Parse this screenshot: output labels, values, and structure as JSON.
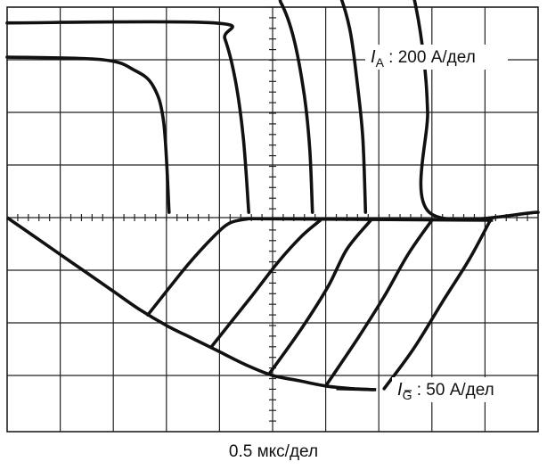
{
  "chart_data": {
    "type": "line",
    "title": "",
    "xlabel": "0.5 мкс/дел",
    "ylabel": "",
    "grid": true,
    "grid_divisions": {
      "x": 10,
      "y": 8
    },
    "annotations": [
      {
        "id": "ia",
        "symbol": "I",
        "subscript": "A",
        "text": ": 200 А/дел"
      },
      {
        "id": "ig",
        "symbol": "I",
        "subscript": "G",
        "overbar": true,
        "text": ": 50 А/дел"
      }
    ],
    "anode_current_series": [
      {
        "values_div": [
          [
            0.0,
            5.25
          ],
          [
            7.05,
            5.25
          ],
          [
            7.25,
            5.15
          ],
          [
            7.5,
            4.75
          ],
          [
            7.7,
            4.0
          ],
          [
            7.85,
            3.0
          ],
          [
            7.92,
            2.0
          ],
          [
            7.95,
            0.1
          ],
          [
            10.0,
            0.1
          ]
        ]
      },
      {
        "values_div": [
          [
            0.0,
            4.65
          ],
          [
            6.0,
            4.65
          ],
          [
            6.2,
            4.4
          ],
          [
            6.45,
            3.6
          ],
          [
            6.6,
            2.5
          ],
          [
            6.7,
            1.5
          ],
          [
            6.75,
            0.1
          ]
        ]
      },
      {
        "values_div": [
          [
            0.0,
            4.35
          ],
          [
            4.9,
            4.35
          ],
          [
            5.15,
            4.1
          ],
          [
            5.4,
            3.4
          ],
          [
            5.6,
            2.3
          ],
          [
            5.7,
            1.3
          ],
          [
            5.75,
            0.1
          ]
        ]
      },
      {
        "values_div": [
          [
            0.0,
            3.7
          ],
          [
            3.9,
            3.7
          ],
          [
            4.1,
            3.4
          ],
          [
            4.3,
            2.6
          ],
          [
            4.45,
            1.5
          ],
          [
            4.55,
            0.1
          ]
        ]
      },
      {
        "values_div": [
          [
            0.0,
            3.05
          ],
          [
            1.8,
            3.0
          ],
          [
            2.4,
            2.8
          ],
          [
            2.75,
            2.5
          ],
          [
            2.95,
            1.8
          ],
          [
            3.05,
            0.1
          ]
        ]
      }
    ],
    "gate_current_envelope": {
      "values_div": [
        [
          0.0,
          0.0
        ],
        [
          0.5,
          -0.35
        ],
        [
          1.0,
          -0.7
        ],
        [
          1.5,
          -1.05
        ],
        [
          2.0,
          -1.4
        ],
        [
          2.5,
          -1.75
        ],
        [
          3.0,
          -2.05
        ],
        [
          3.5,
          -2.3
        ],
        [
          4.0,
          -2.55
        ],
        [
          4.5,
          -2.8
        ],
        [
          5.0,
          -3.0
        ],
        [
          5.5,
          -3.1
        ],
        [
          6.0,
          -3.2
        ],
        [
          6.5,
          -3.25
        ],
        [
          6.9,
          -3.27
        ]
      ]
    },
    "gate_current_series": [
      {
        "values_div": [
          [
            2.65,
            -1.85
          ],
          [
            3.4,
            -0.9
          ],
          [
            3.9,
            -0.35
          ],
          [
            4.2,
            -0.1
          ],
          [
            4.55,
            -0.02
          ]
        ]
      },
      {
        "values_div": [
          [
            3.85,
            -2.45
          ],
          [
            4.6,
            -1.5
          ],
          [
            5.1,
            -0.85
          ],
          [
            5.55,
            -0.35
          ],
          [
            5.9,
            -0.05
          ]
        ]
      },
      {
        "values_div": [
          [
            4.95,
            -2.95
          ],
          [
            5.55,
            -2.1
          ],
          [
            6.05,
            -1.3
          ],
          [
            6.4,
            -0.6
          ],
          [
            6.85,
            -0.05
          ]
        ]
      },
      {
        "values_div": [
          [
            6.0,
            -3.2
          ],
          [
            6.6,
            -2.3
          ],
          [
            7.1,
            -1.5
          ],
          [
            7.55,
            -0.7
          ],
          [
            8.0,
            -0.05
          ]
        ]
      },
      {
        "values_div": [
          [
            7.1,
            -3.25
          ],
          [
            7.65,
            -2.5
          ],
          [
            8.2,
            -1.6
          ],
          [
            8.7,
            -0.8
          ],
          [
            9.1,
            -0.05
          ]
        ]
      }
    ]
  }
}
